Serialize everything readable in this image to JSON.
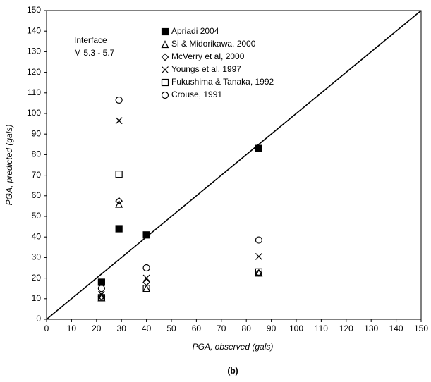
{
  "chart_data": {
    "type": "scatter",
    "title": "(b)",
    "annotations": [
      "Interface",
      "M 5.3 - 5.7"
    ],
    "x_label": "PGA, observed (gals)",
    "y_label": "PGA, predicted (gals)",
    "x": [
      22,
      29,
      40,
      85
    ],
    "series": [
      {
        "name": "Apriadi 2004",
        "color": "#000000",
        "marker": "filled-square",
        "values": [
          18,
          44,
          41,
          83
        ]
      },
      {
        "name": "Si & Midorikawa, 2000",
        "color": "#000000",
        "marker": "triangle",
        "values": [
          10.5,
          56,
          15,
          22.5
        ]
      },
      {
        "name": "McVerry et al, 2000",
        "color": "#000000",
        "marker": "diamond",
        "values": [
          11,
          57.5,
          18,
          22.5
        ]
      },
      {
        "name": "Youngs et al, 1997",
        "color": "#000000",
        "marker": "cross",
        "values": [
          12,
          96.5,
          20,
          30.5
        ]
      },
      {
        "name": "Fukushima & Tanaka, 1992",
        "color": "#000000",
        "marker": "open-square",
        "values": [
          10.5,
          70.5,
          15,
          23
        ]
      },
      {
        "name": "Crouse, 1991",
        "color": "#000000",
        "marker": "circle",
        "values": [
          15,
          106.5,
          25,
          38.5
        ]
      }
    ],
    "reference_line": "y=x",
    "xlim": [
      0,
      150
    ],
    "xticks": [
      0,
      10,
      20,
      30,
      40,
      50,
      60,
      70,
      80,
      90,
      100,
      110,
      120,
      130,
      140,
      150
    ],
    "ylim": [
      0,
      150
    ],
    "yticks": [
      0,
      10,
      20,
      30,
      40,
      50,
      60,
      70,
      80,
      90,
      100,
      110,
      120,
      130,
      140,
      150
    ],
    "grid": false,
    "legend": "top-left"
  }
}
